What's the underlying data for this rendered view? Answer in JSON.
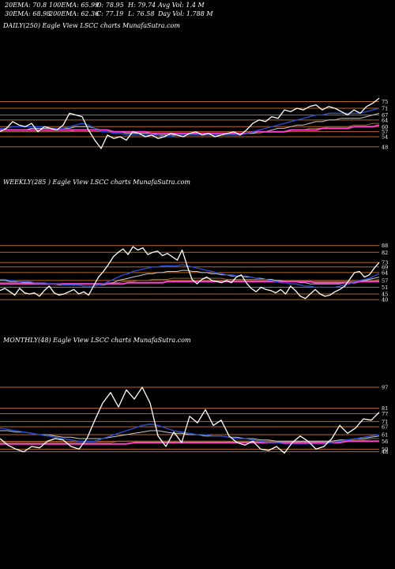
{
  "header": {
    "ema20": "20EMA: 70.8",
    "ema30": "30EMA: 68.98",
    "ema100": "100EMA: 65.99",
    "ema200": "200EMA: 62.36",
    "open": "O: 78.95",
    "close": "C: 77.19",
    "high": "H: 79.74",
    "low": "L: 76.58",
    "avgvol": "Avg Vol: 1.4  M",
    "dayvol": "Day Vol: 1.788 M"
  },
  "colors": {
    "background": "#000000",
    "price": "#ffffff",
    "level_line": "#b8662a",
    "ema_fast": "#2a4fd6",
    "ema_mid": "#c8c8c8",
    "ema_slow_1": "#8a6a3a",
    "ema_slow_2": "#ff3fd0"
  },
  "chart_data": [
    {
      "type": "line",
      "title": "DAILY(250) Eagle  View  LSCC charts MunafaSutra.com",
      "ytick_labels": [
        "75",
        "71",
        "67",
        "64",
        "60",
        "57",
        "54",
        "48"
      ],
      "ylim": [
        46,
        79
      ],
      "series": [
        {
          "role": "price",
          "values": [
            57,
            59,
            63,
            61,
            60,
            62,
            57,
            60,
            59,
            58,
            61,
            68,
            67,
            66,
            58,
            52,
            47,
            55,
            53,
            54,
            52,
            57,
            56,
            54,
            55,
            53,
            54,
            56,
            55,
            54,
            56,
            57,
            55,
            56,
            54,
            55,
            56,
            57,
            55,
            58,
            62,
            64,
            63,
            66,
            65,
            70,
            69,
            71,
            70,
            72,
            73,
            70,
            72,
            71,
            69,
            67,
            70,
            68,
            72,
            74,
            77
          ]
        },
        {
          "role": "ema_fast",
          "values": [
            59,
            59,
            60,
            60,
            60,
            60,
            60,
            60,
            59,
            59,
            59,
            60,
            61,
            62,
            61,
            59,
            57,
            57,
            56,
            56,
            55,
            55,
            55,
            55,
            55,
            55,
            54,
            54,
            55,
            55,
            55,
            55,
            55,
            55,
            55,
            55,
            55,
            55,
            55,
            56,
            57,
            58,
            59,
            60,
            61,
            62,
            63,
            64,
            65,
            66,
            67,
            67,
            68,
            68,
            68,
            68,
            68,
            68,
            69,
            70,
            71
          ]
        },
        {
          "role": "ema_mid",
          "values": [
            58,
            58,
            58,
            58,
            58,
            59,
            59,
            59,
            59,
            59,
            59,
            59,
            60,
            60,
            60,
            59,
            58,
            58,
            57,
            57,
            56,
            56,
            56,
            56,
            56,
            55,
            55,
            55,
            55,
            55,
            55,
            55,
            55,
            55,
            55,
            55,
            55,
            55,
            55,
            56,
            56,
            57,
            57,
            58,
            59,
            59,
            60,
            61,
            61,
            62,
            63,
            63,
            64,
            64,
            65,
            65,
            65,
            65,
            66,
            67,
            68
          ]
        },
        {
          "role": "ema_slow_1",
          "values": [
            57,
            57,
            57,
            57,
            57,
            57,
            57,
            57,
            57,
            57,
            57,
            57,
            58,
            58,
            58,
            58,
            57,
            57,
            57,
            57,
            56,
            56,
            56,
            56,
            56,
            56,
            56,
            56,
            56,
            56,
            56,
            56,
            56,
            56,
            56,
            56,
            56,
            56,
            56,
            56,
            56,
            56,
            57,
            57,
            57,
            57,
            58,
            58,
            58,
            59,
            59,
            59,
            60,
            60,
            60,
            60,
            61,
            61,
            61,
            62,
            62
          ]
        },
        {
          "role": "ema_slow_2",
          "values": [
            58,
            58,
            58,
            58,
            58,
            58,
            58,
            58,
            58,
            58,
            58,
            58,
            58,
            58,
            58,
            58,
            58,
            58,
            57,
            57,
            57,
            57,
            57,
            57,
            56,
            56,
            56,
            56,
            56,
            56,
            56,
            56,
            56,
            56,
            56,
            56,
            56,
            56,
            56,
            56,
            57,
            57,
            57,
            57,
            57,
            57,
            58,
            58,
            58,
            58,
            58,
            59,
            59,
            59,
            59,
            59,
            60,
            60,
            60,
            60,
            61
          ]
        }
      ]
    },
    {
      "type": "line",
      "title": "WEEKLY(285                    ) Eagle  View  LSCC charts MunafaSutra.com",
      "ytick_labels": [
        "88",
        "82",
        "73",
        "69",
        "64",
        "57",
        "51",
        "45",
        "40"
      ],
      "ylim": [
        38,
        92
      ],
      "series": [
        {
          "role": "price",
          "values": [
            48,
            50,
            47,
            44,
            50,
            46,
            45,
            46,
            43,
            48,
            52,
            46,
            44,
            45,
            47,
            49,
            45,
            47,
            44,
            52,
            60,
            65,
            71,
            78,
            82,
            85,
            80,
            87,
            84,
            86,
            80,
            82,
            83,
            79,
            81,
            78,
            75,
            84,
            70,
            58,
            54,
            58,
            60,
            57,
            56,
            55,
            57,
            55,
            60,
            62,
            55,
            50,
            47,
            51,
            49,
            48,
            46,
            49,
            45,
            52,
            48,
            43,
            41,
            45,
            49,
            45,
            43,
            44,
            47,
            49,
            52,
            58,
            64,
            65,
            60,
            62,
            68,
            73
          ]
        },
        {
          "role": "ema_fast",
          "values": [
            58,
            58,
            57,
            57,
            56,
            56,
            56,
            55,
            55,
            55,
            54,
            54,
            54,
            53,
            53,
            53,
            53,
            52,
            52,
            52,
            53,
            54,
            56,
            58,
            60,
            62,
            63,
            65,
            66,
            67,
            68,
            69,
            69,
            70,
            70,
            70,
            70,
            71,
            70,
            69,
            68,
            67,
            66,
            65,
            64,
            63,
            62,
            62,
            61,
            61,
            61,
            60,
            59,
            58,
            58,
            57,
            56,
            55,
            55,
            54,
            54,
            53,
            52,
            52,
            51,
            51,
            51,
            51,
            51,
            52,
            53,
            54,
            56,
            57,
            58,
            59,
            61,
            63
          ]
        },
        {
          "role": "ema_mid",
          "values": [
            57,
            57,
            56,
            56,
            56,
            55,
            55,
            55,
            54,
            54,
            54,
            54,
            53,
            53,
            53,
            53,
            53,
            52,
            52,
            52,
            53,
            53,
            54,
            55,
            57,
            58,
            59,
            60,
            61,
            62,
            63,
            63,
            64,
            64,
            65,
            65,
            65,
            66,
            66,
            65,
            65,
            64,
            64,
            63,
            63,
            62,
            62,
            61,
            61,
            61,
            60,
            60,
            59,
            59,
            58,
            58,
            57,
            57,
            56,
            56,
            56,
            55,
            55,
            54,
            54,
            54,
            54,
            54,
            54,
            54,
            55,
            55,
            56,
            57,
            57,
            58,
            59,
            60
          ]
        },
        {
          "role": "ema_slow_1",
          "values": [
            55,
            55,
            55,
            55,
            55,
            55,
            55,
            55,
            55,
            54,
            54,
            54,
            54,
            54,
            54,
            54,
            54,
            54,
            54,
            54,
            54,
            54,
            55,
            55,
            55,
            56,
            56,
            56,
            57,
            57,
            57,
            58,
            58,
            58,
            58,
            59,
            59,
            59,
            59,
            59,
            59,
            59,
            59,
            59,
            59,
            59,
            58,
            58,
            58,
            58,
            58,
            58,
            58,
            58,
            58,
            57,
            57,
            57,
            57,
            57,
            57,
            56,
            56,
            56,
            56,
            56,
            56,
            56,
            56,
            56,
            56,
            56,
            56,
            57,
            57,
            57,
            57,
            58
          ]
        },
        {
          "role": "ema_slow_2",
          "values": [
            54,
            54,
            54,
            54,
            54,
            54,
            54,
            54,
            54,
            54,
            54,
            54,
            54,
            54,
            54,
            54,
            54,
            54,
            54,
            54,
            54,
            54,
            54,
            54,
            54,
            54,
            55,
            55,
            55,
            55,
            55,
            55,
            55,
            55,
            56,
            56,
            56,
            56,
            56,
            56,
            56,
            56,
            56,
            56,
            56,
            56,
            56,
            56,
            56,
            56,
            56,
            56,
            56,
            56,
            56,
            56,
            56,
            56,
            56,
            56,
            56,
            56,
            56,
            56,
            55,
            55,
            55,
            55,
            55,
            55,
            55,
            55,
            55,
            56,
            56,
            56,
            56,
            56
          ]
        }
      ]
    },
    {
      "type": "line",
      "title": "MONTHLY(48) Eagle  View  LSCC charts MunafaSutra.com",
      "ytick_labels": [
        "97",
        "81",
        "77",
        "71",
        "67",
        "61",
        "56",
        "50",
        "48"
      ],
      "ylim": [
        40,
        100
      ],
      "series": [
        {
          "role": "price",
          "values": [
            58,
            53,
            50,
            48,
            52,
            51,
            56,
            58,
            57,
            52,
            50,
            58,
            72,
            85,
            93,
            82,
            95,
            88,
            97,
            85,
            60,
            52,
            63,
            55,
            75,
            70,
            80,
            68,
            72,
            60,
            55,
            53,
            56,
            50,
            49,
            52,
            47,
            55,
            60,
            56,
            50,
            52,
            58,
            68,
            62,
            66,
            73,
            72,
            78
          ]
        },
        {
          "role": "ema_fast",
          "values": [
            66,
            65,
            64,
            63,
            62,
            61,
            60,
            59,
            58,
            57,
            56,
            56,
            56,
            58,
            60,
            62,
            64,
            66,
            68,
            69,
            68,
            66,
            64,
            63,
            62,
            61,
            61,
            60,
            60,
            59,
            58,
            58,
            57,
            56,
            55,
            55,
            54,
            54,
            54,
            54,
            54,
            54,
            55,
            56,
            57,
            58,
            59,
            60,
            61
          ]
        },
        {
          "role": "ema_mid",
          "values": [
            64,
            64,
            63,
            63,
            62,
            61,
            61,
            60,
            59,
            59,
            58,
            58,
            58,
            58,
            59,
            60,
            61,
            62,
            63,
            64,
            64,
            63,
            62,
            62,
            61,
            61,
            60,
            60,
            60,
            59,
            59,
            58,
            58,
            57,
            57,
            56,
            56,
            56,
            56,
            56,
            56,
            56,
            56,
            57,
            57,
            58,
            58,
            59,
            60
          ]
        },
        {
          "role": "ema_slow_1",
          "values": [
            55,
            55,
            55,
            55,
            55,
            55,
            55,
            55,
            55,
            55,
            55,
            55,
            55,
            55,
            55,
            56,
            56,
            56,
            56,
            56,
            56,
            56,
            56,
            56,
            56,
            56,
            56,
            56,
            56,
            56,
            56,
            56,
            56,
            56,
            56,
            56,
            56,
            56,
            56,
            56,
            56,
            56,
            56,
            57,
            57,
            57,
            57,
            58,
            58
          ]
        },
        {
          "role": "ema_slow_2",
          "values": [
            54,
            54,
            54,
            54,
            54,
            54,
            54,
            54,
            54,
            54,
            54,
            54,
            54,
            54,
            54,
            54,
            54,
            55,
            55,
            55,
            55,
            55,
            55,
            55,
            55,
            55,
            55,
            55,
            55,
            55,
            55,
            55,
            55,
            55,
            55,
            55,
            55,
            55,
            55,
            55,
            55,
            55,
            55,
            55,
            56,
            56,
            56,
            56,
            56
          ]
        }
      ]
    }
  ]
}
